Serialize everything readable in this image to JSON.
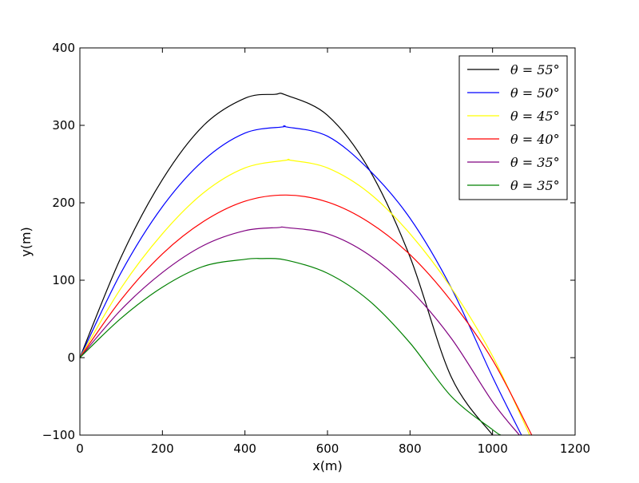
{
  "chart_data": {
    "type": "line",
    "xlabel": "x(m)",
    "ylabel": "y(m)",
    "xlim": [
      0,
      1200
    ],
    "ylim": [
      -100,
      400
    ],
    "xticks": [
      0,
      200,
      400,
      600,
      800,
      1000,
      1200
    ],
    "yticks": [
      -100,
      0,
      100,
      200,
      300,
      400
    ],
    "grid": false,
    "legend_position": "top-right",
    "series": [
      {
        "name": "θ = 55°",
        "color": "#000000",
        "x": [
          0,
          100,
          200,
          300,
          400,
          472,
          500,
          600,
          700,
          800,
          900,
          1000
        ],
        "y": [
          0,
          130,
          230,
          300,
          335,
          340,
          339,
          313,
          244,
          130,
          -25,
          -100
        ]
      },
      {
        "name": "θ = 50°",
        "color": "#0000ff",
        "x": [
          0,
          100,
          200,
          300,
          400,
          492,
          500,
          600,
          700,
          800,
          900,
          1000,
          1070
        ],
        "y": [
          0,
          110,
          195,
          255,
          290,
          298,
          298,
          286,
          243,
          180,
          90,
          -25,
          -100
        ]
      },
      {
        "name": "θ = 45°",
        "color": "#ffff00",
        "x": [
          0,
          100,
          200,
          300,
          400,
          500,
          510,
          600,
          700,
          800,
          900,
          1000,
          1090
        ],
        "y": [
          0,
          90,
          160,
          213,
          245,
          255,
          255,
          245,
          213,
          160,
          90,
          2,
          -100
        ]
      },
      {
        "name": "θ = 40°",
        "color": "#ff0000",
        "x": [
          0,
          100,
          200,
          300,
          400,
          500,
          600,
          700,
          800,
          900,
          1000,
          1095
        ],
        "y": [
          0,
          75,
          134,
          176,
          202,
          210,
          201,
          175,
          133,
          73,
          -3,
          -100
        ]
      },
      {
        "name": "θ = 35°",
        "color": "#800080",
        "x": [
          0,
          100,
          200,
          300,
          400,
          480,
          500,
          600,
          700,
          800,
          900,
          1000,
          1065
        ],
        "y": [
          0,
          62,
          110,
          145,
          164,
          168,
          168,
          160,
          133,
          88,
          25,
          -57,
          -100
        ]
      },
      {
        "name": "θ = 35°",
        "color": "#008000",
        "x": [
          0,
          100,
          200,
          300,
          400,
          440,
          500,
          600,
          700,
          800,
          900,
          1000,
          1020
        ],
        "y": [
          0,
          51,
          91,
          118,
          127,
          128,
          126,
          109,
          74,
          19,
          -50,
          -93,
          -100
        ]
      }
    ]
  }
}
